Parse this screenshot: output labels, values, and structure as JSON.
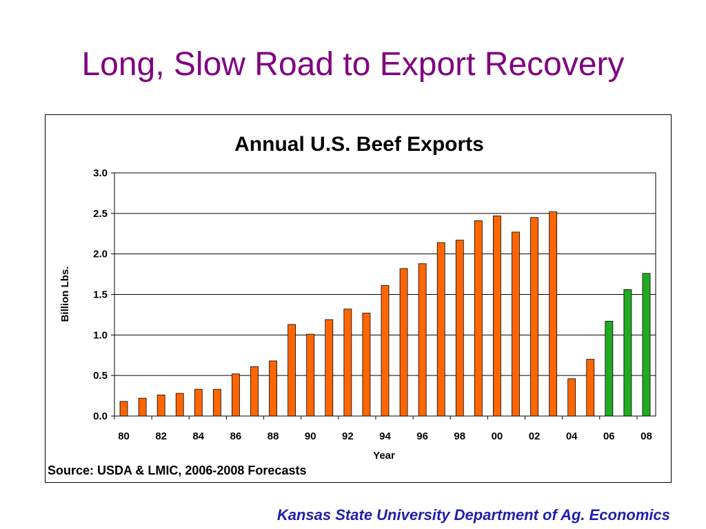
{
  "slide": {
    "title": "Long, Slow Road to Export Recovery",
    "footer": "Kansas State University Department of Ag. Economics"
  },
  "colors": {
    "title": "#800080",
    "footer": "#1f1fb0",
    "actual_bar": "#ff6600",
    "forecast_bar": "#22aa22"
  },
  "chart_data": {
    "type": "bar",
    "title": "Annual U.S. Beef Exports",
    "xlabel": "Year",
    "ylabel": "Billion Lbs.",
    "ylim": [
      0,
      3.0
    ],
    "yticks": [
      "0.0",
      "0.5",
      "1.0",
      "1.5",
      "2.0",
      "2.5",
      "3.0"
    ],
    "xtick_labels": [
      "80",
      "82",
      "84",
      "86",
      "88",
      "90",
      "92",
      "94",
      "96",
      "98",
      "00",
      "02",
      "04",
      "06",
      "08"
    ],
    "grid": true,
    "categories": [
      "80",
      "81",
      "82",
      "83",
      "84",
      "85",
      "86",
      "87",
      "88",
      "89",
      "90",
      "91",
      "92",
      "93",
      "94",
      "95",
      "96",
      "97",
      "98",
      "99",
      "00",
      "01",
      "02",
      "03",
      "04",
      "05",
      "06",
      "07",
      "08"
    ],
    "series": [
      {
        "values": [
          0.18,
          0.22,
          0.26,
          0.28,
          0.33,
          0.33,
          0.52,
          0.61,
          0.68,
          1.13,
          1.01,
          1.19,
          1.32,
          1.27,
          1.61,
          1.82,
          1.88,
          2.14,
          2.17,
          2.41,
          2.47,
          2.27,
          2.45,
          2.52,
          0.46,
          0.7,
          1.17,
          1.56,
          1.76
        ],
        "colors": [
          "#ff6600",
          "#ff6600",
          "#ff6600",
          "#ff6600",
          "#ff6600",
          "#ff6600",
          "#ff6600",
          "#ff6600",
          "#ff6600",
          "#ff6600",
          "#ff6600",
          "#ff6600",
          "#ff6600",
          "#ff6600",
          "#ff6600",
          "#ff6600",
          "#ff6600",
          "#ff6600",
          "#ff6600",
          "#ff6600",
          "#ff6600",
          "#ff6600",
          "#ff6600",
          "#ff6600",
          "#ff6600",
          "#ff6600",
          "#22aa22",
          "#22aa22",
          "#22aa22"
        ]
      }
    ],
    "source": "Source: USDA & LMIC, 2006-2008 Forecasts"
  }
}
